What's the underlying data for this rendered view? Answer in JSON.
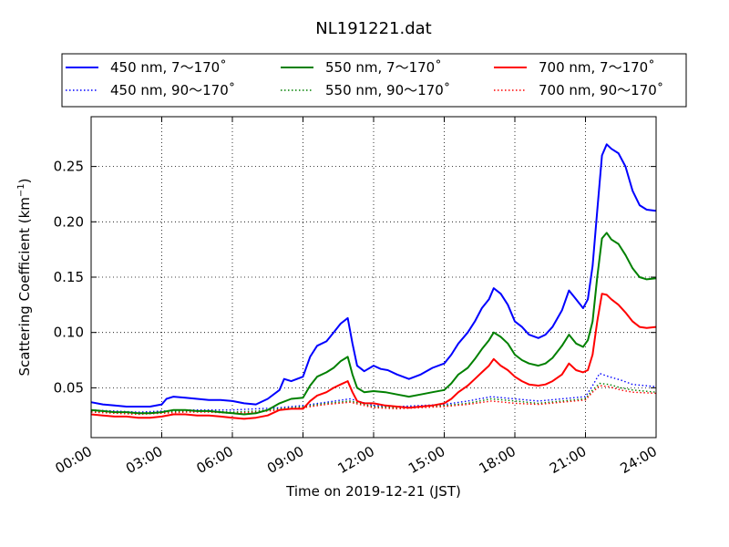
{
  "chart_data": {
    "type": "line",
    "title": "NL191221.dat",
    "xlabel": "Time on 2019-12-21 (JST)",
    "ylabel_main": "Scattering Coefficient (km",
    "ylabel_sup": "−1",
    "ylabel_close": ")",
    "xlim": [
      0,
      24
    ],
    "ylim": [
      0.005,
      0.295
    ],
    "x_ticks": [
      0,
      3,
      6,
      9,
      12,
      15,
      18,
      21,
      24
    ],
    "x_tick_labels": [
      "00:00",
      "03:00",
      "06:00",
      "09:00",
      "12:00",
      "15:00",
      "18:00",
      "21:00",
      "24:00"
    ],
    "y_ticks": [
      0.05,
      0.1,
      0.15,
      0.2,
      0.25
    ],
    "y_tick_labels": [
      "0.05",
      "0.10",
      "0.15",
      "0.20",
      "0.25"
    ],
    "grid": true,
    "legend_position": "top",
    "series": [
      {
        "name": "450 nm, 7～170˚",
        "color": "#0000ff",
        "style": "solid",
        "x": [
          0,
          0.5,
          1,
          1.5,
          2,
          2.5,
          3,
          3.2,
          3.5,
          4,
          4.5,
          5,
          5.5,
          6,
          6.5,
          7,
          7.5,
          8,
          8.2,
          8.5,
          9,
          9.3,
          9.6,
          10,
          10.3,
          10.6,
          10.9,
          11.1,
          11.3,
          11.6,
          12,
          12.3,
          12.6,
          13,
          13.5,
          14,
          14.5,
          15,
          15.3,
          15.6,
          16,
          16.3,
          16.6,
          16.9,
          17.1,
          17.4,
          17.7,
          18,
          18.3,
          18.6,
          19,
          19.3,
          19.6,
          20,
          20.3,
          20.6,
          20.9,
          21.1,
          21.3,
          21.5,
          21.7,
          21.9,
          22.1,
          22.4,
          22.7,
          23,
          23.3,
          23.6,
          24
        ],
        "y": [
          0.037,
          0.035,
          0.034,
          0.033,
          0.033,
          0.033,
          0.035,
          0.04,
          0.042,
          0.041,
          0.04,
          0.039,
          0.039,
          0.038,
          0.036,
          0.035,
          0.04,
          0.048,
          0.058,
          0.056,
          0.06,
          0.078,
          0.088,
          0.092,
          0.1,
          0.108,
          0.113,
          0.09,
          0.07,
          0.065,
          0.07,
          0.067,
          0.066,
          0.062,
          0.058,
          0.062,
          0.068,
          0.072,
          0.08,
          0.09,
          0.1,
          0.11,
          0.122,
          0.13,
          0.14,
          0.135,
          0.125,
          0.11,
          0.105,
          0.098,
          0.095,
          0.098,
          0.105,
          0.12,
          0.138,
          0.13,
          0.122,
          0.13,
          0.16,
          0.21,
          0.26,
          0.27,
          0.266,
          0.262,
          0.25,
          0.228,
          0.215,
          0.211,
          0.21
        ]
      },
      {
        "name": "550 nm, 7～170˚",
        "color": "#008000",
        "style": "solid",
        "x": [
          0,
          0.5,
          1,
          1.5,
          2,
          2.5,
          3,
          3.5,
          4,
          4.5,
          5,
          5.5,
          6,
          6.5,
          7,
          7.5,
          8,
          8.5,
          9,
          9.3,
          9.6,
          10,
          10.3,
          10.6,
          10.9,
          11.1,
          11.3,
          11.6,
          12,
          12.5,
          13,
          13.5,
          14,
          14.5,
          15,
          15.3,
          15.6,
          16,
          16.3,
          16.6,
          16.9,
          17.1,
          17.4,
          17.7,
          18,
          18.3,
          18.6,
          19,
          19.3,
          19.6,
          20,
          20.3,
          20.6,
          20.9,
          21.1,
          21.3,
          21.5,
          21.7,
          21.9,
          22.1,
          22.4,
          22.7,
          23,
          23.3,
          23.6,
          24
        ],
        "y": [
          0.03,
          0.029,
          0.028,
          0.028,
          0.027,
          0.027,
          0.028,
          0.03,
          0.03,
          0.029,
          0.029,
          0.028,
          0.027,
          0.026,
          0.027,
          0.03,
          0.036,
          0.04,
          0.041,
          0.052,
          0.06,
          0.064,
          0.068,
          0.074,
          0.078,
          0.062,
          0.05,
          0.046,
          0.047,
          0.046,
          0.044,
          0.042,
          0.044,
          0.046,
          0.048,
          0.054,
          0.062,
          0.068,
          0.076,
          0.085,
          0.093,
          0.1,
          0.096,
          0.09,
          0.08,
          0.075,
          0.072,
          0.07,
          0.072,
          0.077,
          0.088,
          0.098,
          0.09,
          0.087,
          0.093,
          0.11,
          0.15,
          0.185,
          0.19,
          0.184,
          0.18,
          0.17,
          0.158,
          0.15,
          0.148,
          0.149
        ]
      },
      {
        "name": "700 nm, 7～170˚",
        "color": "#ff0000",
        "style": "solid",
        "x": [
          0,
          0.5,
          1,
          1.5,
          2,
          2.5,
          3,
          3.5,
          4,
          4.5,
          5,
          5.5,
          6,
          6.5,
          7,
          7.5,
          8,
          8.5,
          9,
          9.3,
          9.6,
          10,
          10.3,
          10.6,
          10.9,
          11.1,
          11.3,
          11.6,
          12,
          12.5,
          13,
          13.5,
          14,
          14.5,
          15,
          15.3,
          15.6,
          16,
          16.3,
          16.6,
          16.9,
          17.1,
          17.4,
          17.7,
          18,
          18.3,
          18.6,
          19,
          19.3,
          19.6,
          20,
          20.3,
          20.6,
          20.9,
          21.1,
          21.3,
          21.5,
          21.7,
          21.9,
          22.1,
          22.4,
          22.7,
          23,
          23.3,
          23.6,
          24
        ],
        "y": [
          0.026,
          0.025,
          0.024,
          0.024,
          0.023,
          0.023,
          0.024,
          0.026,
          0.026,
          0.025,
          0.025,
          0.024,
          0.023,
          0.022,
          0.023,
          0.025,
          0.03,
          0.031,
          0.031,
          0.038,
          0.043,
          0.046,
          0.05,
          0.053,
          0.056,
          0.046,
          0.038,
          0.036,
          0.036,
          0.034,
          0.033,
          0.032,
          0.033,
          0.034,
          0.036,
          0.04,
          0.046,
          0.052,
          0.058,
          0.064,
          0.07,
          0.076,
          0.07,
          0.066,
          0.06,
          0.056,
          0.053,
          0.052,
          0.053,
          0.056,
          0.062,
          0.072,
          0.066,
          0.064,
          0.066,
          0.08,
          0.11,
          0.135,
          0.134,
          0.13,
          0.125,
          0.118,
          0.11,
          0.105,
          0.104,
          0.105
        ]
      },
      {
        "name": "450 nm, 90～170˚",
        "color": "#0000ff",
        "style": "dotted",
        "x": [
          0,
          1,
          2,
          3,
          4,
          5,
          6,
          7,
          8,
          9,
          10,
          11,
          12,
          13,
          14,
          15,
          16,
          17,
          18,
          19,
          20,
          21,
          21.3,
          21.6,
          22,
          22.5,
          23,
          24
        ],
        "y": [
          0.03,
          0.029,
          0.028,
          0.029,
          0.03,
          0.03,
          0.03,
          0.031,
          0.032,
          0.034,
          0.037,
          0.04,
          0.034,
          0.033,
          0.034,
          0.035,
          0.038,
          0.042,
          0.04,
          0.038,
          0.04,
          0.042,
          0.052,
          0.063,
          0.06,
          0.057,
          0.053,
          0.051
        ]
      },
      {
        "name": "550 nm, 90～170˚",
        "color": "#008000",
        "style": "dotted",
        "x": [
          0,
          1,
          2,
          3,
          4,
          5,
          6,
          7,
          8,
          9,
          10,
          11,
          12,
          13,
          14,
          15,
          16,
          17,
          18,
          19,
          20,
          21,
          21.3,
          21.6,
          22,
          22.5,
          23,
          24
        ],
        "y": [
          0.029,
          0.028,
          0.027,
          0.028,
          0.029,
          0.029,
          0.028,
          0.029,
          0.031,
          0.033,
          0.036,
          0.038,
          0.033,
          0.032,
          0.033,
          0.034,
          0.036,
          0.04,
          0.038,
          0.036,
          0.038,
          0.04,
          0.048,
          0.054,
          0.053,
          0.05,
          0.048,
          0.046
        ]
      },
      {
        "name": "700 nm, 90～170˚",
        "color": "#ff0000",
        "style": "dotted",
        "x": [
          0,
          1,
          2,
          3,
          4,
          5,
          6,
          7,
          8,
          9,
          10,
          11,
          12,
          13,
          14,
          15,
          16,
          17,
          18,
          19,
          20,
          21,
          21.3,
          21.6,
          22,
          22.5,
          23,
          24
        ],
        "y": [
          0.028,
          0.027,
          0.026,
          0.027,
          0.028,
          0.028,
          0.027,
          0.028,
          0.03,
          0.032,
          0.035,
          0.037,
          0.032,
          0.031,
          0.032,
          0.033,
          0.035,
          0.038,
          0.036,
          0.035,
          0.037,
          0.039,
          0.046,
          0.052,
          0.051,
          0.048,
          0.046,
          0.045
        ]
      }
    ]
  }
}
